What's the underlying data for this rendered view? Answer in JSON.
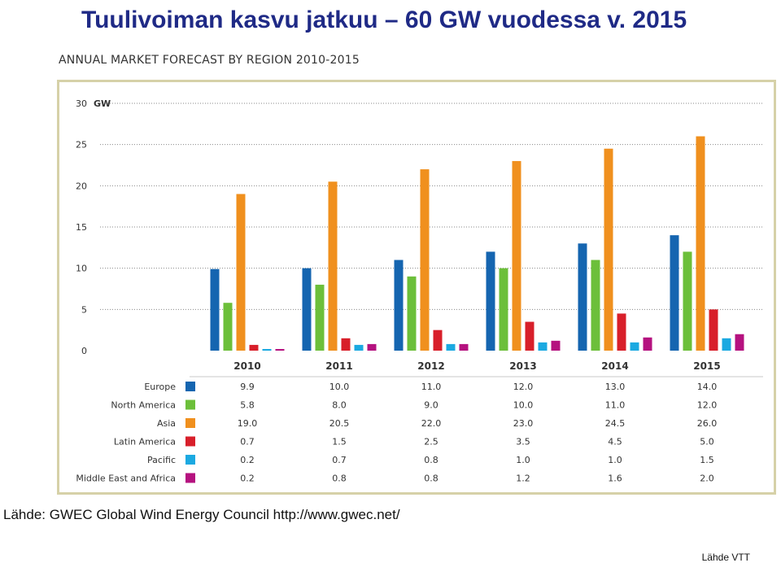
{
  "slide": {
    "title": "Tuulivoiman kasvu jatkuu – 60 GW vuodessa v. 2015",
    "source": "Lähde: GWEC Global Wind Energy Council http://www.gwec.net/",
    "credit": "Lähde VTT"
  },
  "chart_data": {
    "type": "bar",
    "title": "ANNUAL MARKET FORECAST BY REGION 2010-2015",
    "ylabel": "GW",
    "ylim": [
      0,
      30
    ],
    "yticks": [
      0,
      5,
      10,
      15,
      20,
      25,
      30
    ],
    "grid": true,
    "categories": [
      "2010",
      "2011",
      "2012",
      "2013",
      "2014",
      "2015"
    ],
    "series": [
      {
        "name": "Europe",
        "color": "#1565b0",
        "values": [
          9.9,
          10.0,
          11.0,
          12.0,
          13.0,
          14.0
        ],
        "labels": [
          "9.9",
          "10.0",
          "11.0",
          "12.0",
          "13.0",
          "14.0"
        ]
      },
      {
        "name": "North America",
        "color": "#6cbf3a",
        "values": [
          5.8,
          8.0,
          9.0,
          10.0,
          11.0,
          12.0
        ],
        "labels": [
          "5.8",
          "8.0",
          "9.0",
          "10.0",
          "11.0",
          "12.0"
        ]
      },
      {
        "name": "Asia",
        "color": "#f0901e",
        "values": [
          19.0,
          20.5,
          22.0,
          23.0,
          24.5,
          26.0
        ],
        "labels": [
          "19.0",
          "20.5",
          "22.0",
          "23.0",
          "24.5",
          "26.0"
        ]
      },
      {
        "name": "Latin America",
        "color": "#d81f2a",
        "values": [
          0.7,
          1.5,
          2.5,
          3.5,
          4.5,
          5.0
        ],
        "labels": [
          "0.7",
          "1.5",
          "2.5",
          "3.5",
          "4.5",
          "5.0"
        ]
      },
      {
        "name": "Pacific",
        "color": "#1ba9e1",
        "values": [
          0.2,
          0.7,
          0.8,
          1.0,
          1.0,
          1.5
        ],
        "labels": [
          "0.2",
          "0.7",
          "0.8",
          "1.0",
          "1.0",
          "1.5"
        ]
      },
      {
        "name": "Middle East and Africa",
        "color": "#b5127f",
        "values": [
          0.2,
          0.8,
          0.8,
          1.2,
          1.6,
          2.0
        ],
        "labels": [
          "0.2",
          "0.8",
          "0.8",
          "1.2",
          "1.6",
          "2.0"
        ]
      }
    ]
  }
}
